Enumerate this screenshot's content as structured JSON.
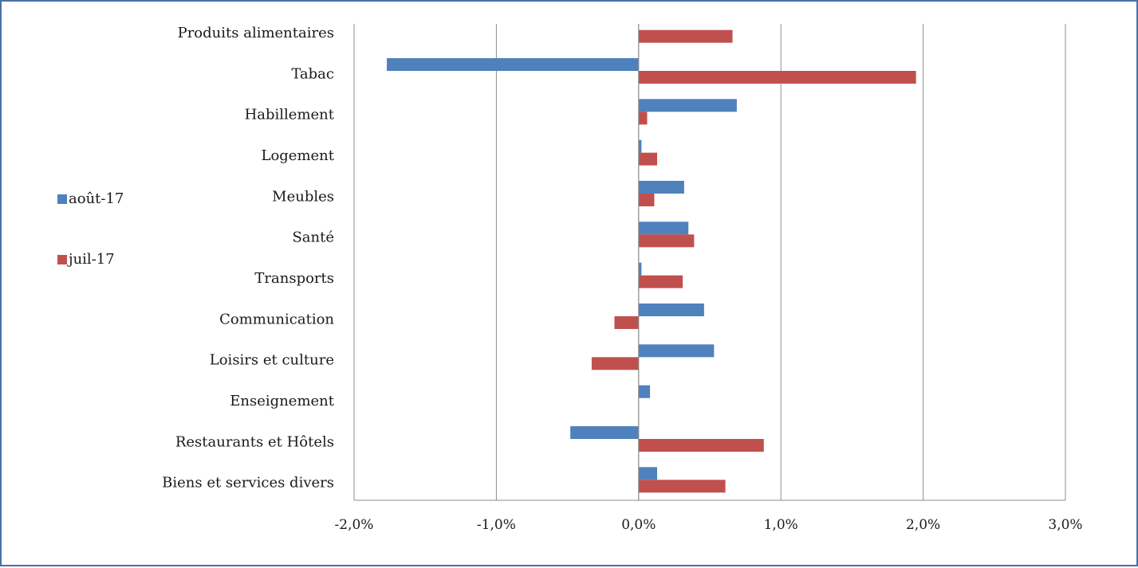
{
  "chart_data": {
    "type": "bar",
    "orientation": "horizontal",
    "categories": [
      "Produits alimentaires",
      "Tabac",
      "Habillement",
      "Logement",
      "Meubles",
      "Santé",
      "Transports",
      "Communication",
      "Loisirs et culture",
      "Enseignement",
      "Restaurants et Hôtels",
      "Biens et services divers"
    ],
    "series": [
      {
        "name": "août-17",
        "color": "#4f81bd",
        "values": [
          0.0,
          -1.77,
          0.69,
          0.02,
          0.32,
          0.35,
          0.02,
          0.46,
          0.53,
          0.08,
          -0.48,
          0.13
        ]
      },
      {
        "name": "juil-17",
        "color": "#c0504d",
        "values": [
          0.66,
          1.95,
          0.06,
          0.13,
          0.11,
          0.39,
          0.31,
          -0.17,
          -0.33,
          0.0,
          0.88,
          0.61
        ]
      }
    ],
    "xticks": [
      "-2,0%",
      "-1,0%",
      "0,0%",
      "1,0%",
      "2,0%",
      "3,0%"
    ],
    "xlim": [
      -2.0,
      3.0
    ],
    "xunit": "%",
    "grid": "vertical",
    "legend": "left"
  }
}
